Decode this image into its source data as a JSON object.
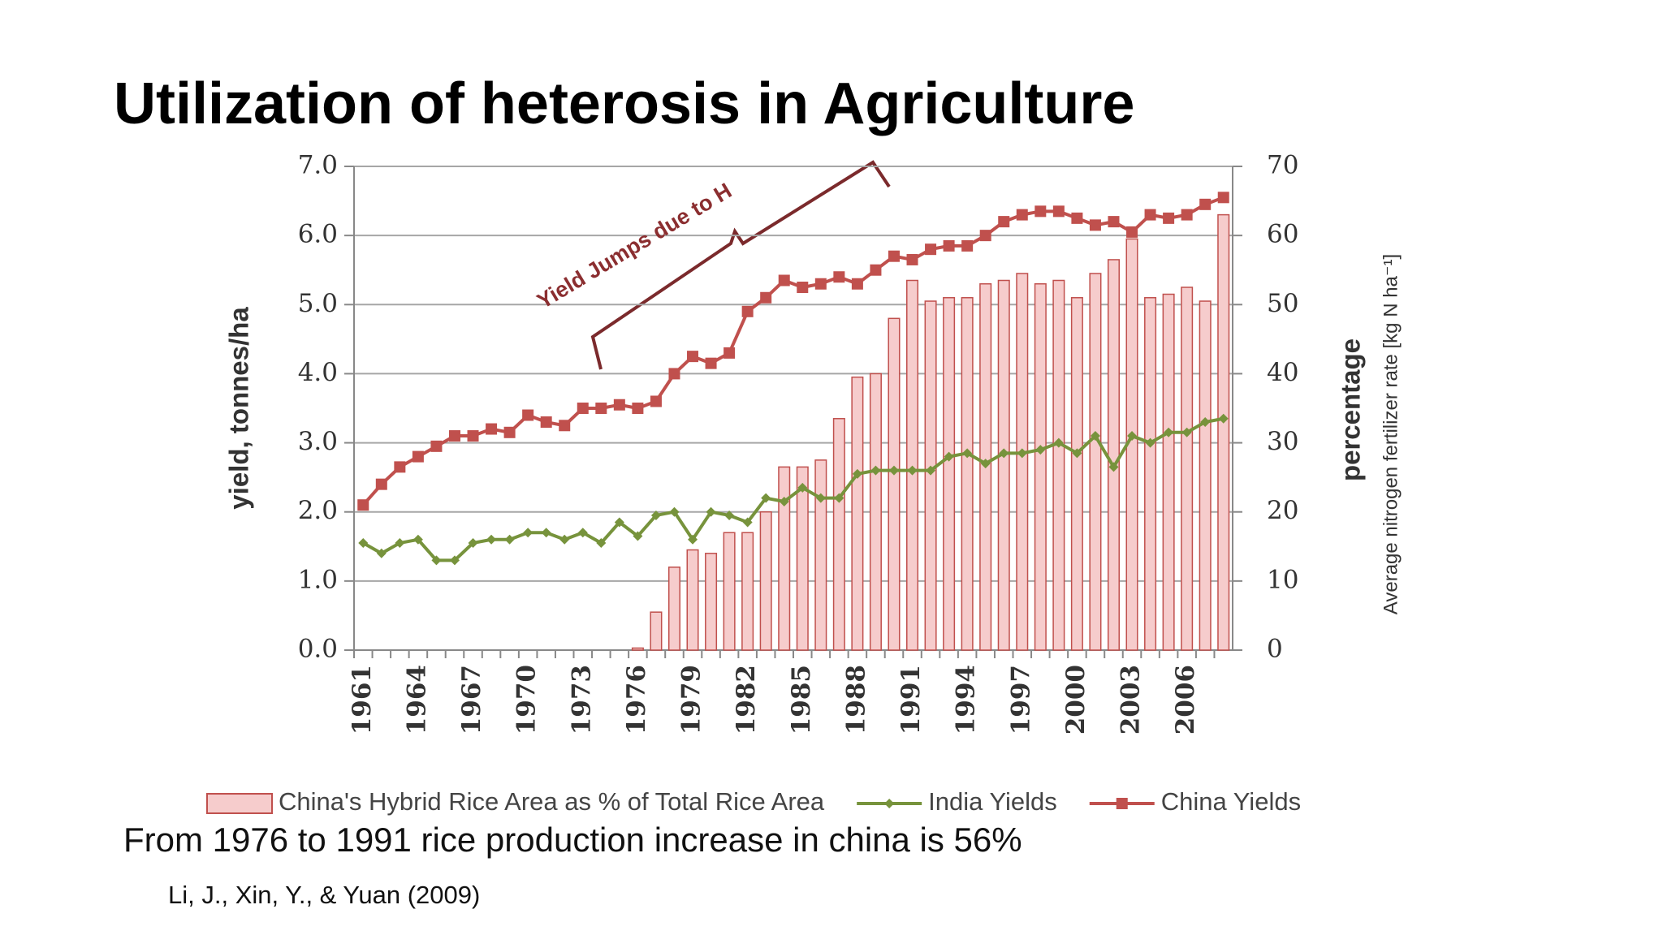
{
  "title": "Utilization of heterosis in Agriculture",
  "chart_data": {
    "type": "combo",
    "ylabel": "yield, tonnes/ha",
    "y2label": "percentage",
    "y2sublabel": "Average nitrogen fertilizer rate [kg N ha⁻¹]",
    "annotation": "Yield Jumps due to H",
    "categories": [
      "1961",
      null,
      null,
      "1964",
      null,
      null,
      "1967",
      null,
      null,
      "1970",
      null,
      null,
      "1973",
      null,
      null,
      "1976",
      null,
      null,
      "1979",
      null,
      null,
      "1982",
      null,
      null,
      "1985",
      null,
      null,
      "1988",
      null,
      null,
      "1991",
      null,
      null,
      "1994",
      null,
      null,
      "1997",
      null,
      null,
      "2000",
      null,
      null,
      "2003",
      null,
      null,
      "2006",
      null,
      null
    ],
    "ylim": [
      0,
      7
    ],
    "yticks": [
      {
        "value": 0,
        "label": "0.0"
      },
      {
        "value": 1,
        "label": "1.0"
      },
      {
        "value": 2,
        "label": "2.0"
      },
      {
        "value": 3,
        "label": "3.0"
      },
      {
        "value": 4,
        "label": "4.0"
      },
      {
        "value": 5,
        "label": "5.0"
      },
      {
        "value": 6,
        "label": "6.0"
      },
      {
        "value": 7,
        "label": "7.0"
      }
    ],
    "y2lim": [
      0,
      70
    ],
    "y2ticks": [
      0,
      10,
      20,
      30,
      40,
      50,
      60,
      70
    ],
    "grid": true,
    "legend": "bottom",
    "series": [
      {
        "name": "China's Hybrid Rice Area as % of Total Rice Area",
        "type": "bar",
        "axis": "y2",
        "color": "#f6cccc",
        "edge": "#c0504d",
        "values": [
          0,
          0,
          0,
          0,
          0,
          0,
          0,
          0,
          0,
          0,
          0,
          0,
          0,
          0,
          0,
          0.3,
          5.5,
          12,
          14.5,
          14,
          17,
          17,
          20,
          26.5,
          26.5,
          27.5,
          33.5,
          39.5,
          40,
          48,
          53.5,
          50.5,
          51,
          51,
          53,
          53.5,
          54.5,
          53,
          53.5,
          51,
          54.5,
          56.5,
          59.5,
          51,
          51.5,
          52.5,
          50.5,
          63
        ]
      },
      {
        "name": "India Yields",
        "type": "line",
        "marker": "diamond",
        "color": "#77933c",
        "values": [
          1.55,
          1.4,
          1.55,
          1.6,
          1.3,
          1.3,
          1.55,
          1.6,
          1.6,
          1.7,
          1.7,
          1.6,
          1.7,
          1.55,
          1.85,
          1.65,
          1.95,
          2.0,
          1.6,
          2.0,
          1.95,
          1.85,
          2.2,
          2.15,
          2.35,
          2.2,
          2.2,
          2.55,
          2.6,
          2.6,
          2.6,
          2.6,
          2.8,
          2.85,
          2.7,
          2.85,
          2.85,
          2.9,
          3.0,
          2.85,
          3.1,
          2.65,
          3.1,
          3.0,
          3.15,
          3.15,
          3.3,
          3.35
        ]
      },
      {
        "name": "China Yields",
        "type": "line",
        "marker": "square",
        "color": "#c0504d",
        "values": [
          2.1,
          2.4,
          2.65,
          2.8,
          2.95,
          3.1,
          3.1,
          3.2,
          3.15,
          3.4,
          3.3,
          3.25,
          3.5,
          3.5,
          3.55,
          3.5,
          3.6,
          4.0,
          4.25,
          4.15,
          4.3,
          4.9,
          5.1,
          5.35,
          5.25,
          5.3,
          5.4,
          5.3,
          5.5,
          5.7,
          5.65,
          5.8,
          5.85,
          5.85,
          6.0,
          6.2,
          6.3,
          6.35,
          6.35,
          6.25,
          6.15,
          6.2,
          6.05,
          6.3,
          6.25,
          6.3,
          6.45,
          6.55
        ]
      }
    ]
  },
  "note": "From 1976 to 1991 rice production increase in china is 56%",
  "citation": "Li, J., Xin, Y., & Yuan (2009)"
}
